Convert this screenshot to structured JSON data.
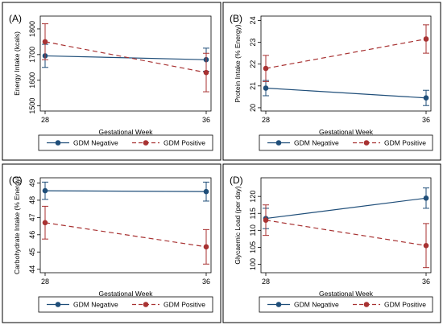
{
  "chart_data": [
    {
      "type": "line",
      "label": "(A)",
      "xlabel": "Gestational Week",
      "ylabel": "Energy Intake (kcals)",
      "categories": [
        "28",
        "36"
      ],
      "yticks": [
        "1500",
        "1600",
        "1700",
        "1800"
      ],
      "ylim": [
        1480,
        1850
      ],
      "series": [
        {
          "name": "GDM Negative",
          "values": [
            1695,
            1680
          ],
          "ci_low": [
            1650,
            1635
          ],
          "ci_high": [
            1740,
            1725
          ]
        },
        {
          "name": "GDM Positive",
          "values": [
            1750,
            1630
          ],
          "ci_low": [
            1680,
            1555
          ],
          "ci_high": [
            1820,
            1705
          ]
        }
      ]
    },
    {
      "type": "line",
      "label": "(B)",
      "xlabel": "Gestational Week",
      "ylabel": "Protein Intake (% Energy)",
      "categories": [
        "28",
        "36"
      ],
      "yticks": [
        "20",
        "21",
        "22",
        "23",
        "24"
      ],
      "ylim": [
        19.85,
        24.2
      ],
      "series": [
        {
          "name": "GDM Negative",
          "values": [
            20.9,
            20.45
          ],
          "ci_low": [
            20.55,
            20.1
          ],
          "ci_high": [
            21.25,
            20.8
          ]
        },
        {
          "name": "GDM Positive",
          "values": [
            21.8,
            23.15
          ],
          "ci_low": [
            21.2,
            22.5
          ],
          "ci_high": [
            22.4,
            23.8
          ]
        }
      ]
    },
    {
      "type": "line",
      "label": "(C)",
      "xlabel": "Gestational Week",
      "ylabel": "Carbohydrate Intake (% Energy)",
      "categories": [
        "28",
        "36"
      ],
      "yticks": [
        "44",
        "45",
        "46",
        "47",
        "48",
        "49"
      ],
      "ylim": [
        43.8,
        49.3
      ],
      "series": [
        {
          "name": "GDM Negative",
          "values": [
            48.55,
            48.5
          ],
          "ci_low": [
            48.05,
            47.95
          ],
          "ci_high": [
            49.05,
            49.05
          ]
        },
        {
          "name": "GDM Positive",
          "values": [
            46.7,
            45.3
          ],
          "ci_low": [
            45.75,
            44.3
          ],
          "ci_high": [
            47.65,
            46.3
          ]
        }
      ]
    },
    {
      "type": "line",
      "label": "(D)",
      "xlabel": "Gestational Week",
      "ylabel": "Glycaemic Load (per day)",
      "categories": [
        "28",
        "36"
      ],
      "yticks": [
        "100",
        "105",
        "110",
        "115",
        "120"
      ],
      "ylim": [
        97.5,
        125.5
      ],
      "series": [
        {
          "name": "GDM Negative",
          "values": [
            113.5,
            119.5
          ],
          "ci_low": [
            110.5,
            116.5
          ],
          "ci_high": [
            116.5,
            122.5
          ]
        },
        {
          "name": "GDM Positive",
          "values": [
            113.0,
            105.5
          ],
          "ci_low": [
            108.5,
            99.0
          ],
          "ci_high": [
            117.5,
            112.0
          ]
        }
      ]
    }
  ],
  "legend": [
    {
      "name": "GDM Negative",
      "color": "#1f4e79",
      "dash": "solid"
    },
    {
      "name": "GDM Positive",
      "color": "#a83232",
      "dash": "dashed"
    }
  ],
  "colors": {
    "negative": "#1f4e79",
    "positive": "#a83232",
    "border": "#000000",
    "background": "#ffffff"
  }
}
